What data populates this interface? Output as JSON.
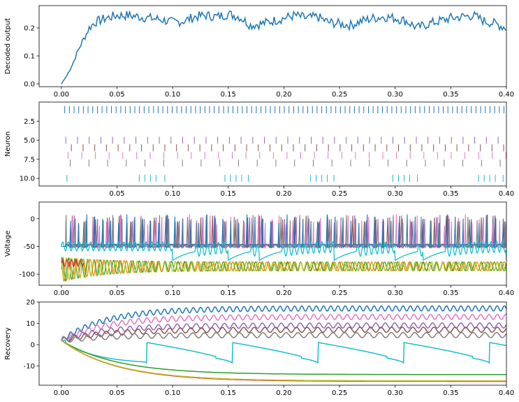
{
  "chart_data": [
    {
      "type": "line",
      "ylabel": "Decoded output",
      "xlim": [
        -0.02,
        0.4
      ],
      "ylim": [
        -0.01,
        0.28
      ],
      "xticks": [
        "0.00",
        "0.05",
        "0.10",
        "0.15",
        "0.20",
        "0.25",
        "0.30",
        "0.35",
        "0.40"
      ],
      "yticks": [
        "0.0",
        "0.1",
        "0.2"
      ],
      "colors": {
        "decoded": "#1f77b4"
      },
      "series": [
        {
          "values_note": "approximate envelope read from plot",
          "x": [
            0.0,
            0.005,
            0.01,
            0.015,
            0.02,
            0.025,
            0.03,
            0.04,
            0.05,
            0.06,
            0.07,
            0.08,
            0.09,
            0.1,
            0.11,
            0.12,
            0.13,
            0.14,
            0.15,
            0.16,
            0.17,
            0.18,
            0.19,
            0.2,
            0.21,
            0.22,
            0.23,
            0.24,
            0.25,
            0.26,
            0.27,
            0.28,
            0.29,
            0.3,
            0.31,
            0.32,
            0.33,
            0.34,
            0.35,
            0.36,
            0.37,
            0.38,
            0.39,
            0.4
          ],
          "y": [
            0.0,
            0.03,
            0.07,
            0.12,
            0.16,
            0.2,
            0.22,
            0.235,
            0.245,
            0.245,
            0.24,
            0.235,
            0.23,
            0.22,
            0.225,
            0.24,
            0.245,
            0.24,
            0.25,
            0.24,
            0.21,
            0.215,
            0.225,
            0.235,
            0.245,
            0.235,
            0.24,
            0.22,
            0.215,
            0.21,
            0.225,
            0.235,
            0.24,
            0.235,
            0.225,
            0.2,
            0.215,
            0.225,
            0.235,
            0.24,
            0.245,
            0.225,
            0.215,
            0.2
          ]
        }
      ]
    },
    {
      "type": "scatter",
      "ylabel": "Neuron",
      "xlim": [
        -0.02,
        0.4
      ],
      "ylim": [
        11.0,
        0.0
      ],
      "xticks": [
        "0.05",
        "0.10",
        "0.15",
        "0.20",
        "0.25",
        "0.30",
        "0.35",
        "0.40"
      ],
      "yticks": [
        "2.5",
        "5.0",
        "7.5",
        "10.0"
      ],
      "series": [
        {
          "neuron": 1,
          "color": "#1f77b4",
          "isi": 0.0042,
          "start": 0.003
        },
        {
          "neuron": 5,
          "color": "#9467bd",
          "isi": 0.0105,
          "start": 0.004
        },
        {
          "neuron": 6,
          "color": "#8c564b",
          "isi": 0.0105,
          "start": 0.009
        },
        {
          "neuron": 7,
          "color": "#e377c2",
          "isi": 0.0123,
          "start": 0.006
        },
        {
          "neuron": 8,
          "color": "#7f7f7f",
          "isi": 0.0168,
          "start": 0.008
        },
        {
          "neuron": 10,
          "color": "#17becf",
          "spikes": [
            0.005,
            0.07,
            0.075,
            0.08,
            0.085,
            0.093,
            0.147,
            0.152,
            0.157,
            0.162,
            0.168,
            0.224,
            0.229,
            0.234,
            0.239,
            0.245,
            0.298,
            0.303,
            0.308,
            0.313,
            0.32,
            0.375,
            0.38,
            0.385,
            0.39,
            0.397
          ]
        }
      ]
    },
    {
      "type": "line",
      "ylabel": "Voltage",
      "xlim": [
        -0.02,
        0.4
      ],
      "ylim": [
        -120,
        30
      ],
      "xticks": [
        "0.00",
        "0.05",
        "0.10",
        "0.15",
        "0.20",
        "0.25",
        "0.30",
        "0.35",
        "0.40"
      ],
      "yticks": [
        "0",
        "-50",
        "-100"
      ],
      "colors": {
        "spiking": [
          "#1f77b4",
          "#ff7f0e",
          "#2ca02c",
          "#d62728",
          "#9467bd",
          "#8c564b",
          "#e377c2",
          "#7f7f7f",
          "#bcbd22",
          "#17becf"
        ]
      },
      "series": [
        {
          "name_hidden": "spiking band",
          "min": -50,
          "max": 10
        },
        {
          "name_hidden": "lower band",
          "min": -95,
          "max": -78
        },
        {
          "name_hidden": "cyan resets",
          "times": [
            0.1,
            0.15,
            0.178,
            0.245,
            0.3,
            0.325,
            0.4
          ],
          "reset_value": -75
        }
      ]
    },
    {
      "type": "line",
      "ylabel": "Recovery",
      "xlim": [
        -0.02,
        0.4
      ],
      "ylim": [
        -19,
        20
      ],
      "xticks": [
        "0.00",
        "0.05",
        "0.10",
        "0.15",
        "0.20",
        "0.25",
        "0.30",
        "0.35",
        "0.40"
      ],
      "yticks": [
        "20",
        "10",
        "0",
        "-10"
      ],
      "series": [
        {
          "color": "#1f77b4",
          "final": 17.0
        },
        {
          "color": "#e377c2",
          "final": 13.0
        },
        {
          "color": "#9467bd",
          "final": 9.0
        },
        {
          "color": "#8c564b",
          "final": 7.0
        },
        {
          "color": "#7f7f7f",
          "final": 4.5
        },
        {
          "color": "#17becf",
          "pattern": "sawtooth",
          "min": -9,
          "max": 1
        },
        {
          "color": "#2ca02c",
          "final": -14.0
        },
        {
          "color": "#ff7f0e",
          "final": -17.0
        },
        {
          "color": "#d62728",
          "final": -17.2
        },
        {
          "color": "#bcbd22",
          "final": -17.0
        }
      ]
    }
  ]
}
